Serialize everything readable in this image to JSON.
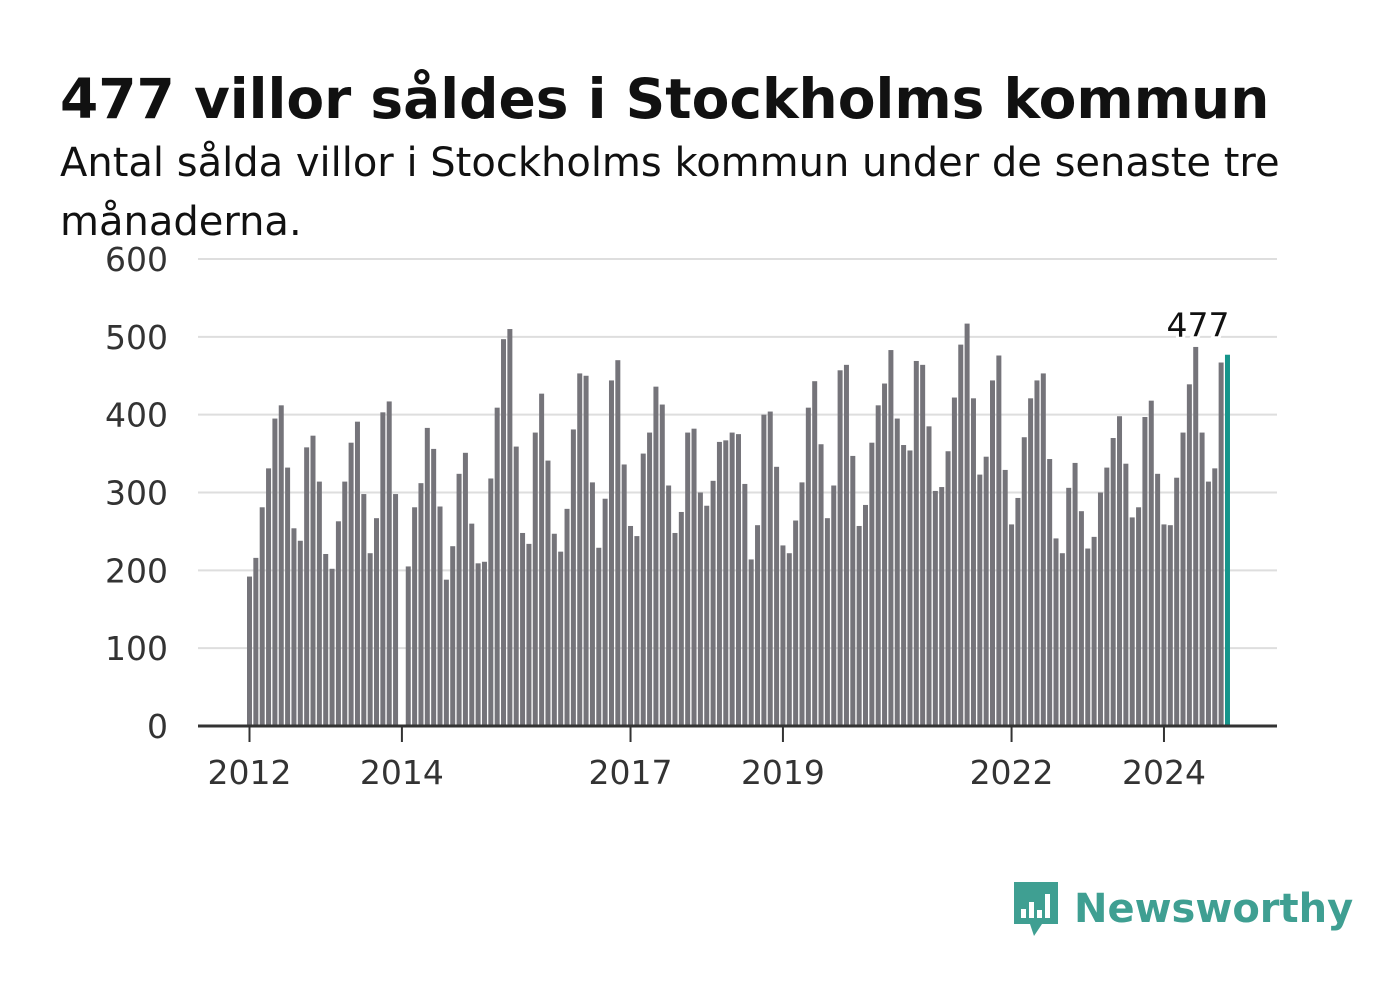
{
  "title": "477 villor såldes i Stockholms kommun",
  "subtitle": "Antal sålda villor i Stockholms kommun under de senaste tre månaderna.",
  "colors": {
    "bar": "#75747a",
    "highlight": "#16958b",
    "grid": "#dedede",
    "axis": "#333333",
    "brand": "#3f9f92"
  },
  "brand": {
    "name": "Newsworthy",
    "icon": "bar-chart-speech-bubble-icon"
  },
  "chart_data": {
    "type": "bar",
    "ylim": [
      0,
      600
    ],
    "yticks": [
      0,
      100,
      200,
      300,
      400,
      500,
      600
    ],
    "xticks": [
      {
        "label": "2012",
        "index": 0
      },
      {
        "label": "2014",
        "index": 24
      },
      {
        "label": "2017",
        "index": 60
      },
      {
        "label": "2019",
        "index": 84
      },
      {
        "label": "2022",
        "index": 120
      },
      {
        "label": "2024",
        "index": 144
      }
    ],
    "highlight_label": "477",
    "grid": true,
    "values": [
      192,
      216,
      281,
      331,
      395,
      412,
      332,
      254,
      238,
      358,
      373,
      314,
      221,
      202,
      263,
      314,
      364,
      391,
      298,
      222,
      267,
      403,
      417,
      298,
      0,
      205,
      281,
      312,
      383,
      356,
      282,
      188,
      231,
      324,
      351,
      260,
      209,
      211,
      318,
      409,
      497,
      510,
      359,
      248,
      234,
      377,
      427,
      341,
      247,
      224,
      279,
      381,
      453,
      450,
      313,
      229,
      292,
      444,
      470,
      336,
      257,
      244,
      350,
      377,
      436,
      413,
      309,
      248,
      275,
      377,
      382,
      300,
      283,
      315,
      365,
      367,
      377,
      375,
      311,
      214,
      258,
      400,
      404,
      333,
      232,
      222,
      264,
      313,
      409,
      443,
      362,
      267,
      309,
      457,
      464,
      347,
      257,
      284,
      364,
      412,
      440,
      483,
      395,
      361,
      354,
      469,
      464,
      385,
      302,
      307,
      353,
      422,
      490,
      517,
      421,
      323,
      346,
      444,
      476,
      329,
      259,
      293,
      371,
      421,
      444,
      453,
      343,
      241,
      222,
      306,
      338,
      276,
      228,
      243,
      300,
      332,
      370,
      398,
      337,
      268,
      281,
      397,
      418,
      324,
      259,
      258,
      319,
      377,
      439,
      487,
      377,
      314,
      331,
      467,
      477
    ]
  }
}
